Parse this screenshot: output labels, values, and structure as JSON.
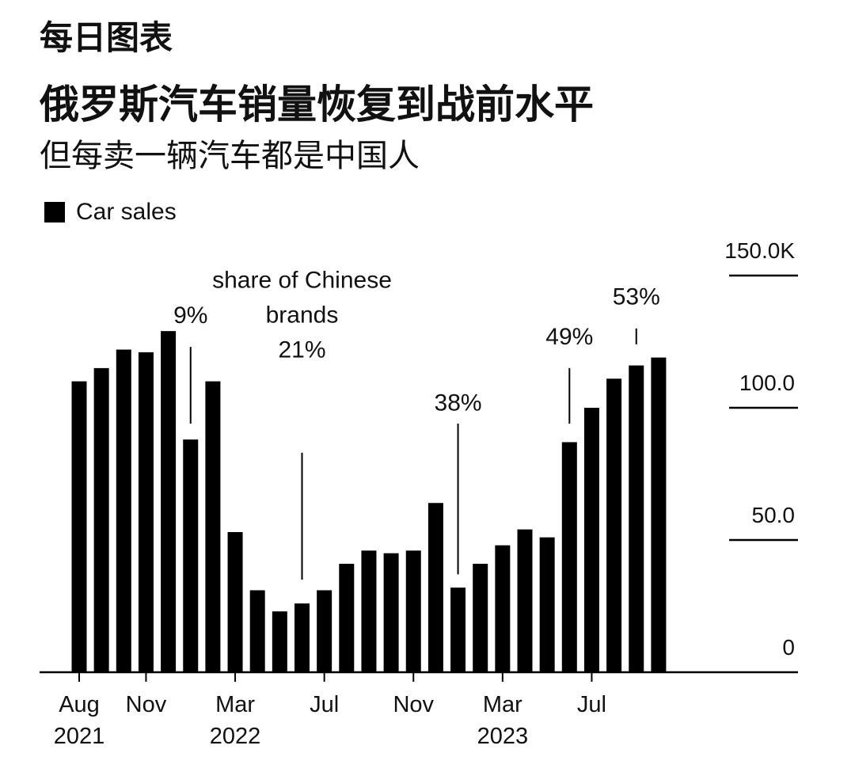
{
  "header": {
    "kicker": "每日图表",
    "title": "俄罗斯汽车销量恢复到战前水平",
    "subtitle": "但每卖一辆汽车都是中国人"
  },
  "legend": {
    "label": "Car sales",
    "swatch_color": "#000000"
  },
  "chart_data": {
    "type": "bar",
    "title": "俄罗斯汽车销量恢复到战前水平",
    "subtitle": "但每卖一辆汽车都是中国人",
    "series": [
      {
        "name": "Car sales",
        "color": "#000000",
        "values": [
          110,
          115,
          122,
          121,
          129,
          88,
          110,
          53,
          31,
          23,
          26,
          31,
          41,
          46,
          45,
          46,
          64,
          32,
          41,
          48,
          54,
          51,
          87,
          100,
          111,
          116,
          119
        ]
      }
    ],
    "categories": [
      "2021-08",
      "2021-09",
      "2021-10",
      "2021-11",
      "2021-12",
      "2022-01",
      "2022-02",
      "2022-03",
      "2022-04",
      "2022-05",
      "2022-06",
      "2022-07",
      "2022-08",
      "2022-09",
      "2022-10",
      "2022-11",
      "2022-12",
      "2023-01",
      "2023-02",
      "2023-03",
      "2023-04",
      "2023-05",
      "2023-06",
      "2023-07",
      "2023-08",
      "2023-09",
      "2023-10"
    ],
    "y_axis": {
      "min": 0,
      "max": 150,
      "ticks": [
        {
          "value": 0,
          "label": "0"
        },
        {
          "value": 50,
          "label": "50.0"
        },
        {
          "value": 100,
          "label": "100.0"
        },
        {
          "value": 150,
          "label": "150.0K"
        }
      ],
      "side": "right",
      "gridlines": "short dashes at right only"
    },
    "x_axis": {
      "ticks": [
        {
          "category": "2021-08",
          "label": "Aug",
          "year": "2021"
        },
        {
          "category": "2021-11",
          "label": "Nov",
          "year": ""
        },
        {
          "category": "2022-03",
          "label": "Mar",
          "year": "2022"
        },
        {
          "category": "2022-07",
          "label": "Jul",
          "year": ""
        },
        {
          "category": "2022-11",
          "label": "Nov",
          "year": ""
        },
        {
          "category": "2023-03",
          "label": "Mar",
          "year": "2023"
        },
        {
          "category": "2023-07",
          "label": "Jul",
          "year": ""
        }
      ]
    },
    "annotations": [
      {
        "category": "2022-01",
        "lines": [
          "9%"
        ],
        "leader_from": 94,
        "leader_to": 123,
        "text_at": 132
      },
      {
        "category": "2022-06",
        "lines": [
          "share of Chinese",
          "brands",
          "21%"
        ],
        "leader_from": 35,
        "leader_to": 83,
        "text_at": 119
      },
      {
        "category": "2023-01",
        "lines": [
          "38%"
        ],
        "leader_from": 37,
        "leader_to": 94,
        "text_at": 99
      },
      {
        "category": "2023-06",
        "lines": [
          "49%"
        ],
        "leader_from": 94,
        "leader_to": 115,
        "text_at": 124
      },
      {
        "category": "2023-09",
        "lines": [
          "53%"
        ],
        "leader_from": 124,
        "leader_to": 130,
        "text_at": 139
      }
    ],
    "legend_position": "top-left"
  }
}
